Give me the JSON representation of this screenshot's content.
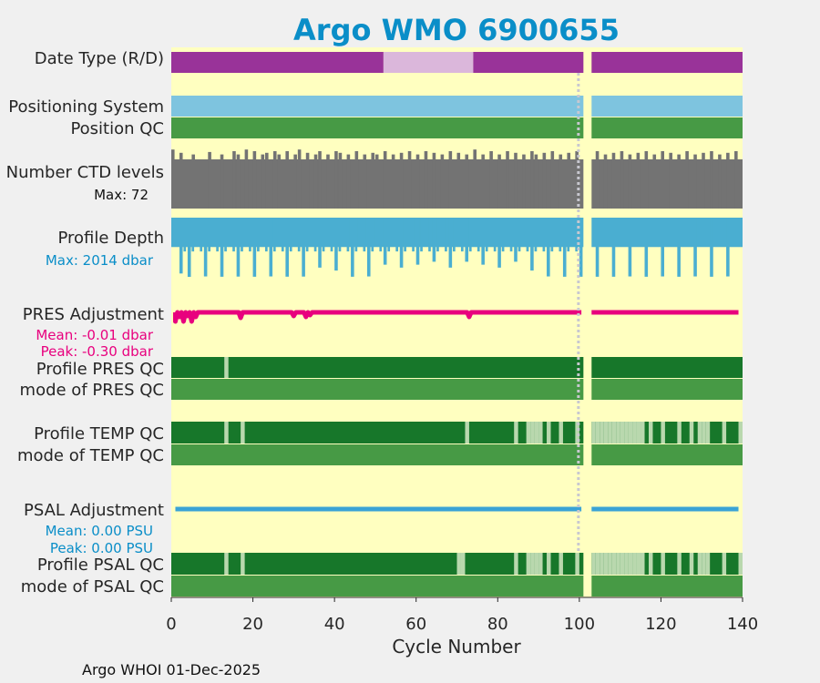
{
  "chart_data": {
    "type": "argo-float-summary",
    "title": "Argo WMO 6900655",
    "xlabel": "Cycle Number",
    "xlim": [
      0,
      140
    ],
    "xticks": [
      0,
      20,
      40,
      60,
      80,
      100,
      120,
      140
    ],
    "footer": "Argo WHOI 01-Dec-2025",
    "rows": {
      "date_type": {
        "label": "Date Type (R/D)",
        "segments": [
          {
            "from": 0,
            "to": 52,
            "color": "#993399"
          },
          {
            "from": 52,
            "to": 74,
            "color": "#dbb7db"
          },
          {
            "from": 74,
            "to": 101,
            "color": "#993399"
          },
          {
            "from": 103,
            "to": 140,
            "color": "#993399"
          }
        ]
      },
      "positioning_system": {
        "label": "Positioning System",
        "color": "#7ec4df",
        "segments": [
          [
            0,
            101
          ],
          [
            103,
            140
          ]
        ]
      },
      "position_qc": {
        "label": "Position QC",
        "color": "#479a45",
        "segments": [
          [
            0,
            101
          ],
          [
            103,
            140
          ]
        ]
      },
      "ctd_levels": {
        "label": "Number CTD levels",
        "max_label": "Max: 72",
        "max": 72,
        "base": 60,
        "spike_cycles": [
          0,
          2,
          5,
          9,
          12,
          15,
          16,
          18,
          20,
          22,
          23,
          25,
          26,
          28,
          30,
          31,
          33,
          35,
          36,
          38,
          40,
          41,
          43,
          45,
          47,
          49,
          50,
          52,
          54,
          56,
          58,
          60,
          62,
          64,
          66,
          68,
          70,
          72,
          74,
          76,
          78,
          80,
          82,
          84,
          86,
          88,
          89,
          91,
          93,
          95,
          97,
          99,
          104,
          106,
          108,
          110,
          112,
          114,
          116,
          118,
          120,
          122,
          124,
          126,
          128,
          130,
          132,
          134,
          136,
          138
        ],
        "spike_values": [
          72,
          68,
          66,
          69,
          66,
          70,
          66,
          72,
          70,
          66,
          68,
          70,
          66,
          70,
          66,
          72,
          68,
          66,
          70,
          66,
          70,
          68,
          66,
          70,
          66,
          68,
          66,
          70,
          66,
          68,
          70,
          66,
          70,
          68,
          66,
          70,
          68,
          66,
          72,
          66,
          70,
          66,
          70,
          68,
          66,
          70,
          66,
          68,
          70,
          66,
          68,
          70,
          70,
          66,
          68,
          70,
          66,
          68,
          70,
          66,
          70,
          68,
          66,
          70,
          66,
          68,
          70,
          66,
          68,
          70
        ]
      },
      "profile_depth": {
        "label": "Profile Depth",
        "max_label": "Max: 2014 dbar",
        "max": 2014,
        "typical": 1000,
        "deep_cycles": [
          2,
          4,
          8,
          12,
          16,
          20,
          24,
          28,
          32,
          36,
          40,
          44,
          48,
          52,
          56,
          60,
          64,
          68,
          72,
          76,
          80,
          84,
          88,
          92,
          96,
          100,
          104,
          108,
          112,
          116,
          120,
          124,
          128,
          132,
          136
        ],
        "deep_values": [
          1900,
          2014,
          2000,
          2010,
          2005,
          2010,
          2000,
          2008,
          2005,
          1700,
          1800,
          2010,
          2000,
          1600,
          1700,
          1600,
          1500,
          1700,
          1500,
          1600,
          1700,
          1500,
          1800,
          2000,
          2010,
          2010,
          2010,
          2010,
          2000,
          2010,
          2000,
          2010,
          2000,
          2010,
          2000
        ]
      },
      "pres_adjustment": {
        "label": "PRES Adjustment",
        "mean_label": "Mean: -0.01 dbar",
        "peak_label": "Peak: -0.30 dbar",
        "color": "#e8007e",
        "dips": [
          [
            1,
            1.0
          ],
          [
            2,
            0.5
          ],
          [
            3,
            1.0
          ],
          [
            4,
            0.4
          ],
          [
            5,
            1.0
          ],
          [
            6,
            0.5
          ],
          [
            17,
            0.6
          ],
          [
            30,
            0.4
          ],
          [
            33,
            0.5
          ],
          [
            34,
            0.3
          ],
          [
            73,
            0.5
          ]
        ]
      },
      "profile_pres_qc": {
        "label": "Profile PRES QC",
        "base_color": "#17772a",
        "light_color": "#b9d8ae",
        "light_cycles": [
          13
        ]
      },
      "mode_pres_qc": {
        "label": "mode of PRES QC",
        "color": "#479a45"
      },
      "profile_temp_qc": {
        "label": "Profile TEMP QC",
        "base_color": "#17772a",
        "light_color": "#b9d8ae",
        "light_cycles": [
          13,
          17,
          72,
          84,
          87,
          88,
          89,
          90,
          92,
          95,
          99,
          103,
          104,
          105,
          106,
          107,
          108,
          109,
          110,
          111,
          112,
          113,
          114,
          115,
          117,
          120,
          124,
          127,
          129,
          130,
          131,
          135,
          139
        ]
      },
      "mode_temp_qc": {
        "label": "mode of TEMP QC",
        "color": "#479a45"
      },
      "psal_adjustment": {
        "label": "PSAL Adjustment",
        "mean_label": "Mean: 0.00 PSU",
        "peak_label": "Peak: 0.00 PSU",
        "color": "#3aa3d6"
      },
      "profile_psal_qc": {
        "label": "Profile PSAL QC",
        "base_color": "#17772a",
        "light_color": "#b9d8ae",
        "light_cycles": [
          13,
          17,
          70,
          71,
          84,
          87,
          88,
          89,
          90,
          92,
          95,
          99,
          103,
          104,
          105,
          106,
          107,
          108,
          109,
          110,
          111,
          112,
          113,
          114,
          115,
          117,
          120,
          124,
          127,
          129,
          130,
          131,
          135,
          139
        ]
      },
      "mode_psal_qc": {
        "label": "mode of PSAL QC",
        "color": "#479a45"
      }
    },
    "missing_cycles": [
      101,
      102
    ],
    "dotted_line_cycle": 100,
    "colors": {
      "background": "#ffffc0",
      "title": "#0a8ec8",
      "ctd": "#737373",
      "depth": "#4aaed1",
      "psal_text": "#0a8ec8",
      "pres_text": "#e8007e"
    }
  }
}
